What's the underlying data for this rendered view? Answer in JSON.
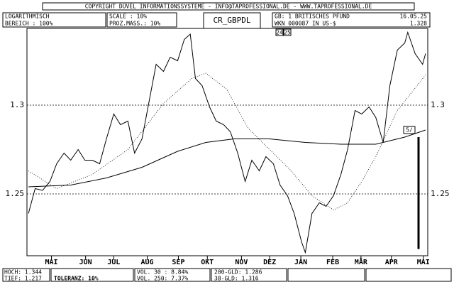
{
  "chart_data": {
    "type": "line",
    "title": "CR_GBPDL",
    "xlim": [
      0,
      54
    ],
    "ylim": [
      1.2152,
      1.3432
    ],
    "xticks": [
      {
        "value": 3.3,
        "label": "MAI"
      },
      {
        "value": 7.9,
        "label": "JUN"
      },
      {
        "value": 11.7,
        "label": "JUL"
      },
      {
        "value": 16.2,
        "label": "AUG"
      },
      {
        "value": 20.4,
        "label": "SEP"
      },
      {
        "value": 24.3,
        "label": "OKT"
      },
      {
        "value": 28.9,
        "label": "NOV"
      },
      {
        "value": 32.7,
        "label": "DEZ"
      },
      {
        "value": 36.9,
        "label": "JAN"
      },
      {
        "value": 41.2,
        "label": "FEB"
      },
      {
        "value": 45.0,
        "label": "MÄR"
      },
      {
        "value": 49.1,
        "label": "APR"
      },
      {
        "value": 53.4,
        "label": "MAI"
      }
    ],
    "yticks": [
      1.25,
      1.3
    ],
    "grid": true,
    "series": [
      {
        "name": "GBPDL",
        "color": "#000000",
        "style": "solid",
        "x": [
          0.2,
          1.1,
          2.1,
          3.1,
          4.0,
          5.0,
          5.9,
          6.9,
          7.8,
          8.8,
          9.8,
          10.7,
          11.7,
          12.6,
          13.6,
          14.5,
          15.5,
          16.5,
          17.4,
          18.4,
          19.3,
          20.3,
          21.2,
          22.0,
          22.7,
          23.6,
          24.6,
          25.5,
          26.5,
          27.4,
          28.4,
          29.4,
          30.3,
          31.3,
          32.2,
          33.2,
          34.1,
          35.1,
          36.0,
          37.0,
          37.5,
          38.4,
          39.4,
          40.3,
          41.3,
          42.3,
          43.2,
          44.2,
          45.1,
          46.1,
          47.0,
          48.0,
          48.9,
          49.9,
          50.9,
          51.3,
          52.3,
          53.3,
          53.7
        ],
        "values": [
          1.239,
          1.253,
          1.252,
          1.257,
          1.267,
          1.273,
          1.269,
          1.275,
          1.269,
          1.269,
          1.267,
          1.281,
          1.295,
          1.289,
          1.291,
          1.273,
          1.281,
          1.303,
          1.323,
          1.319,
          1.327,
          1.325,
          1.337,
          1.34,
          1.315,
          1.311,
          1.299,
          1.291,
          1.289,
          1.285,
          1.273,
          1.257,
          1.269,
          1.263,
          1.271,
          1.267,
          1.255,
          1.249,
          1.239,
          1.223,
          1.217,
          1.239,
          1.245,
          1.243,
          1.249,
          1.261,
          1.275,
          1.297,
          1.295,
          1.299,
          1.293,
          1.279,
          1.311,
          1.331,
          1.335,
          1.341,
          1.329,
          1.323,
          1.329
        ]
      },
      {
        "name": "200-GLD",
        "color": "#000000",
        "style": "solid",
        "x": [
          0.2,
          5.9,
          10.7,
          15.5,
          20.3,
          24.1,
          27.9,
          32.7,
          37.5,
          42.3,
          47.0,
          50.9,
          53.7
        ],
        "values": [
          1.254,
          1.255,
          1.259,
          1.265,
          1.274,
          1.279,
          1.281,
          1.281,
          1.279,
          1.278,
          1.278,
          1.282,
          1.286
        ]
      },
      {
        "name": "38-GLD",
        "color": "#000000",
        "style": "dotted",
        "x": [
          0.2,
          4.0,
          8.8,
          13.6,
          18.4,
          22.2,
          24.1,
          26.9,
          29.8,
          32.7,
          35.6,
          38.4,
          41.3,
          43.2,
          45.1,
          47.0,
          49.9,
          53.7
        ],
        "values": [
          1.263,
          1.253,
          1.261,
          1.275,
          1.301,
          1.315,
          1.318,
          1.309,
          1.287,
          1.275,
          1.263,
          1.249,
          1.241,
          1.245,
          1.257,
          1.271,
          1.297,
          1.317
        ]
      }
    ],
    "range_bar": {
      "low": 1.219,
      "high": 1.282
    },
    "marker_label": "5/",
    "header": {
      "copyright": "COPYRIGHT DÜVEL INFORMATIONSSYSTEME - INFO@TAPROFESSIONAL.DE - WWW.TAPROFESSIONAL.DE",
      "scale_type": "LOGARITHMISCH",
      "range": "BEREICH : 100%",
      "scale": "SCALE : 10%",
      "proz": "PROZ.MASS.: 10%",
      "unit": "GB: 1 BRITISCHES PFUND",
      "date": "16.05.25",
      "wkn": "WKN 000087 IN US-$",
      "last": "1.328",
      "year_a": "24",
      "year_b": "25"
    },
    "footer": {
      "high": "HOCH: 1.344",
      "low": "TIEF: 1.217",
      "tolerance": "TOLERANZ: 10%",
      "vol30": "VOL. 30 : 8.84%",
      "vol250": "VOL. 250: 7.37%",
      "gld200": "200-GLD: 1.286",
      "gld38": "38-GLD: 1.316"
    }
  }
}
